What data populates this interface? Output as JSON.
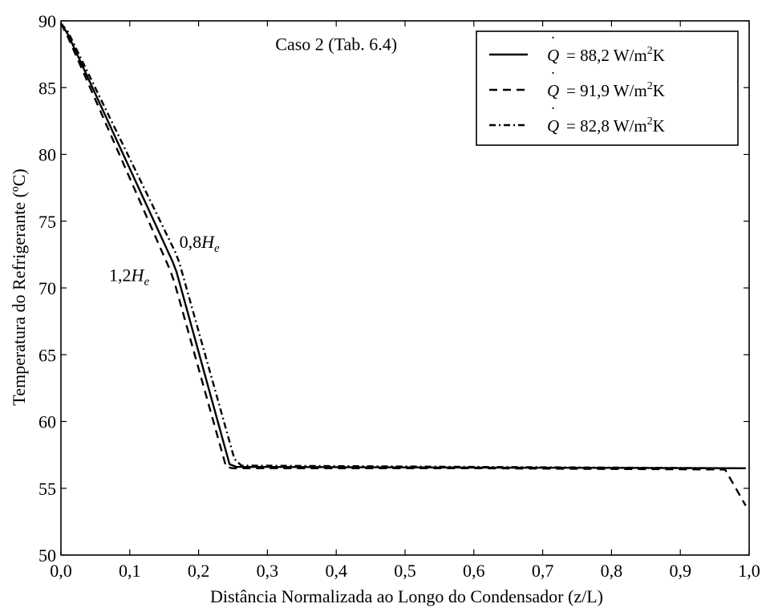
{
  "chart_data": {
    "type": "line",
    "title": "",
    "xlabel": "Distância Normalizada ao Longo do Condensador (z/L)",
    "ylabel": "Temperatura do Refrigerante (ºC)",
    "xlim": [
      0.0,
      1.0
    ],
    "ylim": [
      50,
      90
    ],
    "xticks": [
      "0,0",
      "0,1",
      "0,2",
      "0,3",
      "0,4",
      "0,5",
      "0,6",
      "0,7",
      "0,8",
      "0,9",
      "1,0"
    ],
    "yticks": [
      "50",
      "55",
      "60",
      "65",
      "70",
      "75",
      "80",
      "85",
      "90"
    ],
    "grid": false,
    "legend_position": "top-right",
    "annotations": [
      {
        "text": "Caso 2 (Tab. 6.4)",
        "x": 0.4,
        "y": 87.8
      },
      {
        "text": "0,8",
        "math": "H",
        "sub": "e",
        "x": 0.172,
        "y": 73.0
      },
      {
        "text": "1,2",
        "math": "H",
        "sub": "e",
        "x": 0.07,
        "y": 70.5
      }
    ],
    "series": [
      {
        "name": "Q̇ = 88,2 W/m²K",
        "style": "solid",
        "x": [
          0.0,
          0.01,
          0.162,
          0.168,
          0.245,
          0.255,
          0.6,
          0.995
        ],
        "y": [
          89.8,
          89.0,
          72.0,
          71.2,
          56.8,
          56.6,
          56.55,
          56.5
        ]
      },
      {
        "name": "Q̇ = 91,9 W/m²K",
        "style": "dashed",
        "x": [
          0.0,
          0.01,
          0.158,
          0.165,
          0.24,
          0.25,
          0.6,
          0.965,
          0.995
        ],
        "y": [
          89.8,
          88.8,
          71.4,
          70.4,
          56.6,
          56.5,
          56.5,
          56.4,
          53.7
        ]
      },
      {
        "name": "Q̇ = 82,8 W/m²K",
        "style": "dashdot",
        "x": [
          0.0,
          0.01,
          0.166,
          0.172,
          0.252,
          0.262,
          0.6,
          0.995
        ],
        "y": [
          89.8,
          89.2,
          72.7,
          71.9,
          57.2,
          56.7,
          56.6,
          56.5
        ]
      }
    ]
  },
  "legend": {
    "prefix": "Q",
    "dot": "˙",
    "entries": [
      {
        "value": "= 88,2 W/m",
        "sup": "2",
        "suffix": "K"
      },
      {
        "value": "= 91,9 W/m",
        "sup": "2",
        "suffix": "K"
      },
      {
        "value": "= 82,8 W/m",
        "sup": "2",
        "suffix": "K"
      }
    ]
  }
}
